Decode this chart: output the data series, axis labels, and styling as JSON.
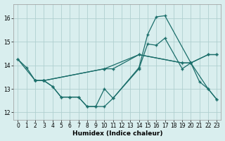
{
  "xlabel": "Humidex (Indice chaleur)",
  "xlim": [
    -0.5,
    23.5
  ],
  "ylim": [
    11.7,
    16.6
  ],
  "yticks": [
    12,
    13,
    14,
    15,
    16
  ],
  "xticks": [
    0,
    1,
    2,
    3,
    4,
    5,
    6,
    7,
    8,
    9,
    10,
    11,
    12,
    13,
    14,
    15,
    16,
    17,
    18,
    19,
    20,
    21,
    22,
    23
  ],
  "bg_color": "#d9eeee",
  "grid_color": "#b0d0d0",
  "line_color": "#1a6e6a",
  "line1_x": [
    0,
    1,
    2,
    3,
    4,
    5,
    6,
    7,
    8,
    9,
    10,
    11,
    14,
    15,
    16,
    17,
    20,
    21,
    22,
    23
  ],
  "line1_y": [
    14.25,
    13.9,
    13.35,
    13.35,
    13.1,
    12.65,
    12.65,
    12.65,
    12.25,
    12.25,
    12.25,
    12.6,
    13.9,
    15.3,
    16.05,
    16.1,
    14.1,
    13.3,
    13.0,
    12.55
  ],
  "line2_x": [
    2,
    3,
    4,
    5,
    6,
    7,
    8,
    9,
    10,
    11,
    14,
    15,
    16,
    17,
    19,
    20,
    22,
    23
  ],
  "line2_y": [
    13.35,
    13.35,
    13.1,
    12.65,
    12.65,
    12.65,
    12.25,
    12.25,
    13.0,
    12.6,
    13.85,
    14.9,
    14.85,
    15.15,
    13.85,
    14.1,
    13.0,
    12.55
  ],
  "line3_x": [
    2,
    3,
    10,
    14,
    19,
    20,
    22,
    23
  ],
  "line3_y": [
    13.35,
    13.35,
    13.85,
    14.45,
    14.1,
    14.1,
    14.45,
    14.45
  ],
  "line4_x": [
    0,
    2,
    3,
    10,
    11,
    14,
    19,
    20,
    22,
    23
  ],
  "line4_y": [
    14.25,
    13.35,
    13.35,
    13.85,
    13.85,
    14.45,
    14.1,
    14.1,
    14.45,
    14.45
  ]
}
